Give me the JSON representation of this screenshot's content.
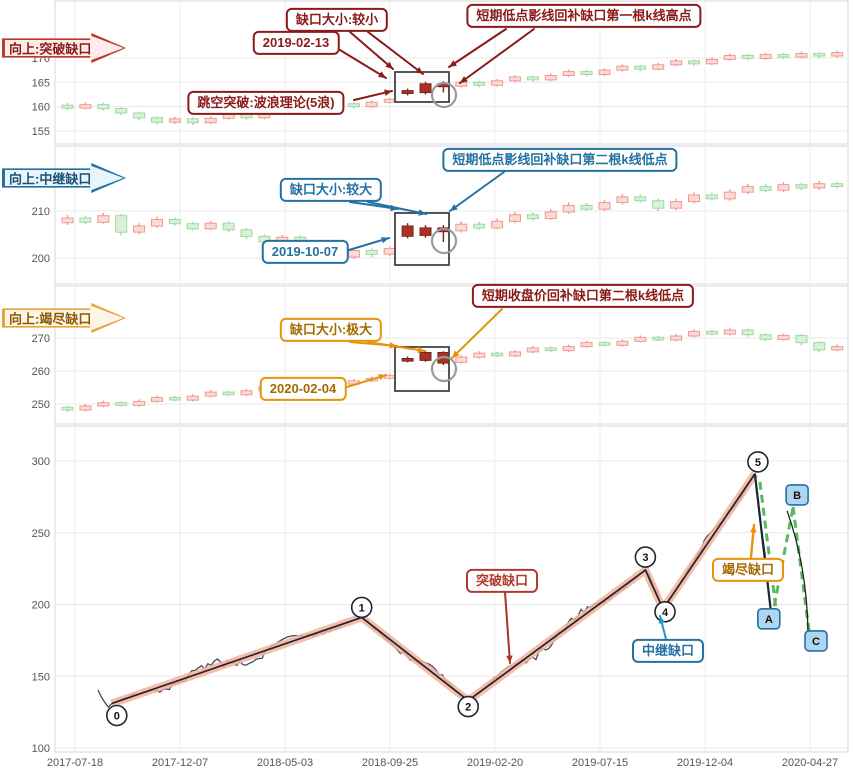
{
  "colors": {
    "up_fill": "#fadbd8",
    "up_stroke": "#ef9a8d",
    "down_fill": "#d7f2d7",
    "down_stroke": "#9fd89f",
    "gap_fill": "#a93226",
    "gap_stroke": "#7b241c",
    "wave_band": "#f6b29b",
    "wave_line": "#1b2631",
    "price_line": "#3d4a5d",
    "projection_green": "#5cb85c",
    "red_accent": "#8b1a1a",
    "blue_accent": "#2471a3",
    "orange_accent": "#e8930c"
  },
  "chart_data": [
    {
      "type": "candlestick",
      "panel_label": "向上:突破缺口",
      "y_ticks": [
        155,
        160,
        165,
        170
      ],
      "gap_indices": [
        19,
        20,
        21
      ],
      "annotations": {
        "gap_size": "缺口大小:较小",
        "gap_date": "2019-02-13",
        "fill_note": "短期低点影线回补缺口第一根k线高点",
        "breakout_note": "跳空突破:波浪理论(5浪)"
      },
      "candles": [
        [
          160.3,
          159.7,
          160.8,
          159.3
        ],
        [
          159.7,
          160.4,
          160.9,
          159.4
        ],
        [
          160.4,
          159.6,
          160.8,
          159.2
        ],
        [
          159.6,
          158.7,
          159.9,
          158.3
        ],
        [
          158.7,
          157.7,
          159.0,
          157.2
        ],
        [
          157.7,
          156.8,
          158.0,
          156.3
        ],
        [
          156.8,
          157.5,
          157.9,
          156.5
        ],
        [
          157.5,
          156.7,
          157.8,
          156.2
        ],
        [
          156.7,
          157.6,
          158.0,
          156.4
        ],
        [
          157.6,
          158.4,
          158.8,
          157.3
        ],
        [
          158.4,
          157.7,
          158.7,
          157.3
        ],
        [
          157.7,
          158.6,
          159.0,
          157.4
        ],
        [
          158.6,
          159.5,
          159.9,
          158.3
        ],
        [
          159.5,
          158.8,
          159.8,
          158.4
        ],
        [
          158.8,
          159.8,
          160.2,
          158.5
        ],
        [
          159.8,
          160.6,
          161.0,
          159.5
        ],
        [
          160.6,
          160.0,
          160.9,
          159.6
        ],
        [
          160.0,
          160.9,
          161.3,
          159.7
        ],
        [
          160.9,
          161.5,
          161.8,
          160.6
        ],
        [
          163.3,
          162.7,
          163.7,
          162.3
        ],
        [
          162.9,
          164.7,
          165.1,
          162.5
        ],
        [
          164.7,
          164.1,
          165.2,
          162.9
        ],
        [
          164.2,
          165.0,
          165.4,
          163.9
        ],
        [
          165.0,
          164.4,
          165.3,
          164.0
        ],
        [
          164.4,
          165.3,
          165.7,
          164.1
        ],
        [
          165.3,
          166.1,
          166.5,
          165.0
        ],
        [
          166.1,
          165.5,
          166.4,
          165.1
        ],
        [
          165.5,
          166.4,
          166.8,
          165.2
        ],
        [
          166.4,
          167.2,
          167.6,
          166.1
        ],
        [
          167.2,
          166.6,
          167.5,
          166.2
        ],
        [
          166.6,
          167.5,
          167.9,
          166.3
        ],
        [
          167.5,
          168.3,
          168.7,
          167.2
        ],
        [
          168.3,
          167.7,
          168.6,
          167.3
        ],
        [
          167.7,
          168.6,
          169.0,
          167.4
        ],
        [
          168.6,
          169.4,
          169.8,
          168.3
        ],
        [
          169.4,
          168.8,
          169.7,
          168.4
        ],
        [
          168.8,
          169.7,
          170.1,
          168.5
        ],
        [
          169.7,
          170.5,
          170.9,
          169.4
        ],
        [
          170.5,
          169.9,
          170.8,
          169.5
        ],
        [
          169.9,
          170.7,
          171.1,
          169.6
        ],
        [
          170.7,
          170.2,
          171.0,
          169.8
        ],
        [
          170.2,
          170.9,
          171.3,
          169.9
        ],
        [
          170.9,
          170.4,
          171.2,
          170.0
        ],
        [
          170.4,
          171.1,
          171.5,
          170.1
        ]
      ]
    },
    {
      "type": "candlestick",
      "panel_label": "向上:中继缺口",
      "y_ticks": [
        200,
        210
      ],
      "gap_indices": [
        19,
        20,
        21
      ],
      "annotations": {
        "gap_size": "缺口大小:较大",
        "gap_date": "2019-10-07",
        "fill_note": "短期低点影线回补缺口第二根k线低点"
      },
      "candles": [
        [
          207.5,
          208.5,
          209.2,
          207.0
        ],
        [
          208.5,
          207.6,
          209.0,
          207.2
        ],
        [
          207.6,
          209.0,
          209.6,
          207.3
        ],
        [
          209.0,
          205.5,
          209.4,
          204.8
        ],
        [
          205.5,
          206.8,
          207.4,
          205.0
        ],
        [
          206.8,
          208.2,
          208.8,
          206.4
        ],
        [
          208.2,
          207.3,
          208.6,
          206.9
        ],
        [
          207.3,
          206.2,
          207.7,
          205.8
        ],
        [
          206.2,
          207.4,
          207.9,
          205.9
        ],
        [
          207.4,
          206.0,
          207.8,
          205.5
        ],
        [
          206.0,
          204.6,
          206.4,
          204.0
        ],
        [
          204.6,
          203.4,
          205.0,
          202.8
        ],
        [
          203.4,
          204.4,
          204.9,
          203.0
        ],
        [
          204.4,
          202.8,
          204.8,
          202.2
        ],
        [
          202.8,
          201.4,
          203.2,
          200.7
        ],
        [
          201.4,
          200.2,
          201.8,
          199.4
        ],
        [
          200.2,
          201.6,
          202.1,
          199.8
        ],
        [
          201.6,
          200.8,
          202.0,
          200.2
        ],
        [
          200.8,
          202.0,
          202.4,
          200.4
        ],
        [
          206.8,
          204.6,
          207.4,
          204.2
        ],
        [
          204.8,
          206.4,
          207.0,
          204.3
        ],
        [
          206.4,
          205.6,
          207.0,
          203.4
        ],
        [
          205.8,
          207.2,
          207.8,
          205.4
        ],
        [
          207.2,
          206.4,
          207.7,
          206.0
        ],
        [
          206.4,
          207.8,
          208.4,
          206.1
        ],
        [
          207.8,
          209.2,
          209.8,
          207.4
        ],
        [
          209.2,
          208.4,
          209.7,
          208.0
        ],
        [
          208.4,
          209.8,
          210.4,
          208.1
        ],
        [
          209.8,
          211.2,
          211.8,
          209.4
        ],
        [
          211.2,
          210.4,
          211.7,
          210.0
        ],
        [
          210.4,
          211.8,
          212.4,
          210.0
        ],
        [
          211.8,
          213.0,
          213.6,
          211.4
        ],
        [
          213.0,
          212.2,
          213.5,
          211.8
        ],
        [
          212.2,
          210.6,
          212.6,
          210.0
        ],
        [
          210.6,
          212.0,
          212.6,
          210.2
        ],
        [
          212.0,
          213.4,
          214.0,
          211.6
        ],
        [
          213.4,
          212.6,
          213.9,
          212.2
        ],
        [
          212.6,
          214.0,
          214.6,
          212.2
        ],
        [
          214.0,
          215.2,
          215.8,
          213.6
        ],
        [
          215.2,
          214.4,
          215.7,
          214.0
        ],
        [
          214.4,
          215.6,
          216.2,
          214.0
        ],
        [
          215.6,
          214.9,
          216.0,
          214.4
        ],
        [
          214.9,
          215.8,
          216.4,
          214.5
        ],
        [
          215.8,
          215.2,
          216.2,
          214.8
        ]
      ]
    },
    {
      "type": "candlestick",
      "panel_label": "向上:竭尽缺口",
      "y_ticks": [
        250,
        260,
        270
      ],
      "gap_indices": [
        19,
        20,
        21
      ],
      "annotations": {
        "gap_size": "缺口大小:极大",
        "gap_date": "2020-02-04",
        "fill_note": "短期收盘价回补缺口第二根k线低点"
      },
      "candles": [
        [
          249.0,
          248.2,
          249.5,
          247.6
        ],
        [
          248.2,
          249.4,
          250.0,
          247.8
        ],
        [
          249.4,
          250.4,
          251.0,
          249.0
        ],
        [
          250.4,
          249.6,
          250.8,
          249.2
        ],
        [
          249.6,
          250.8,
          251.4,
          249.2
        ],
        [
          250.8,
          252.0,
          252.6,
          250.4
        ],
        [
          252.0,
          251.2,
          252.4,
          250.8
        ],
        [
          251.2,
          252.4,
          253.0,
          250.8
        ],
        [
          252.4,
          253.6,
          254.2,
          252.0
        ],
        [
          253.6,
          252.8,
          254.0,
          252.4
        ],
        [
          252.8,
          254.0,
          254.6,
          252.4
        ],
        [
          254.0,
          255.2,
          255.8,
          253.6
        ],
        [
          255.2,
          254.4,
          255.6,
          254.0
        ],
        [
          254.4,
          255.6,
          256.2,
          254.0
        ],
        [
          255.6,
          256.8,
          257.4,
          255.2
        ],
        [
          256.8,
          256.0,
          257.2,
          255.6
        ],
        [
          256.0,
          257.0,
          257.6,
          255.6
        ],
        [
          257.0,
          257.8,
          258.4,
          256.6
        ],
        [
          257.8,
          258.6,
          259.2,
          257.4
        ],
        [
          263.8,
          263.0,
          264.4,
          262.6
        ],
        [
          263.2,
          265.6,
          266.2,
          262.8
        ],
        [
          265.6,
          262.4,
          266.0,
          261.8
        ],
        [
          262.6,
          264.2,
          264.8,
          262.2
        ],
        [
          264.2,
          265.4,
          266.0,
          263.8
        ],
        [
          265.4,
          264.6,
          265.8,
          264.2
        ],
        [
          264.6,
          265.8,
          266.4,
          264.2
        ],
        [
          265.8,
          267.0,
          267.6,
          265.4
        ],
        [
          267.0,
          266.2,
          267.4,
          265.8
        ],
        [
          266.2,
          267.4,
          268.0,
          265.8
        ],
        [
          267.4,
          268.6,
          269.2,
          267.0
        ],
        [
          268.6,
          267.8,
          269.0,
          267.4
        ],
        [
          267.8,
          269.0,
          269.6,
          267.4
        ],
        [
          269.0,
          270.2,
          270.8,
          268.6
        ],
        [
          270.2,
          269.4,
          270.6,
          269.0
        ],
        [
          269.4,
          270.6,
          271.2,
          269.0
        ],
        [
          270.6,
          272.0,
          272.6,
          270.2
        ],
        [
          272.0,
          271.2,
          272.4,
          270.8
        ],
        [
          271.2,
          272.4,
          273.0,
          270.8
        ],
        [
          272.4,
          271.0,
          272.8,
          270.4
        ],
        [
          271.0,
          269.6,
          271.4,
          269.0
        ],
        [
          269.6,
          270.8,
          271.4,
          269.2
        ],
        [
          270.8,
          268.6,
          271.2,
          267.8
        ],
        [
          268.6,
          266.4,
          269.0,
          265.6
        ],
        [
          266.4,
          267.4,
          268.0,
          266.0
        ]
      ]
    },
    {
      "type": "line",
      "x_ticks": [
        "2017-07-18",
        "2017-12-07",
        "2018-05-03",
        "2018-09-25",
        "2019-02-20",
        "2019-07-15",
        "2019-12-04",
        "2020-04-27"
      ],
      "y_ticks": [
        100,
        150,
        200,
        250,
        300
      ],
      "waves": [
        {
          "label": "0",
          "f": 0.05,
          "price": 131
        },
        {
          "label": "1",
          "f": 0.39,
          "price": 191
        },
        {
          "label": "2",
          "f": 0.535,
          "price": 133
        },
        {
          "label": "3",
          "f": 0.776,
          "price": 224
        },
        {
          "label": "4",
          "f": 0.8,
          "price": 197
        },
        {
          "label": "5",
          "f": 0.925,
          "price": 291
        },
        {
          "label": "A",
          "f": 0.948,
          "price": 190
        },
        {
          "label": "B",
          "f": 0.977,
          "price": 268
        },
        {
          "label": "C",
          "f": 1.0,
          "price": 176
        }
      ],
      "annotations": {
        "breakaway": "突破缺口",
        "runaway": "中继缺口",
        "exhaustion": "竭尽缺口"
      }
    }
  ]
}
